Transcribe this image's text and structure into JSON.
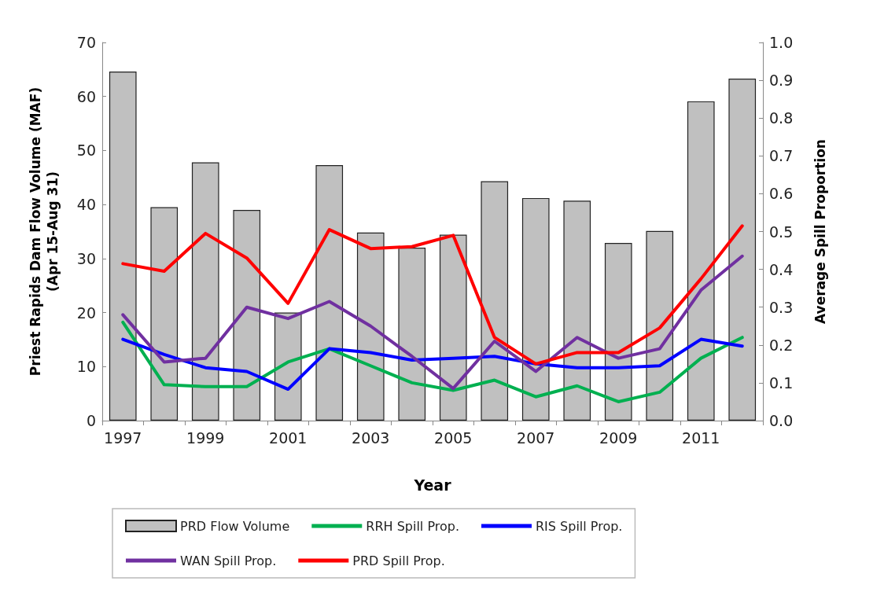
{
  "chart_data": {
    "type": "bar",
    "xlabel": "Year",
    "ylabel": "Priest Rapids Dam Flow Volume (MAF)\n(Apr 15-Aug 31)",
    "y2label": "Average Spill Proportion",
    "categories": [
      "1997",
      null,
      "1999",
      null,
      "2001",
      null,
      "2003",
      null,
      "2005",
      null,
      "2007",
      null,
      "2009",
      null,
      "2011",
      null
    ],
    "series": [
      {
        "name": "PRD Flow Volume",
        "color": "#c0c0c0",
        "values": [
          64.6,
          39.5,
          47.8,
          39,
          20,
          47.3,
          34.8,
          32,
          34.4,
          44.3,
          41.2,
          40.7,
          32.9,
          35.1,
          59.1,
          63.3
        ]
      },
      {
        "name": "RRH Spill Prop.",
        "type": "line",
        "axis": "y2",
        "color": "#00b050",
        "values": [
          0.26,
          0.095,
          0.09,
          0.09,
          0.155,
          0.19,
          0.145,
          0.1,
          0.08,
          0.107,
          0.063,
          0.092,
          0.05,
          0.075,
          0.165,
          0.22
        ]
      },
      {
        "name": "RIS Spill Prop.",
        "type": "line",
        "axis": "y2",
        "color": "#0000ff",
        "values": [
          0.215,
          0.175,
          0.14,
          0.13,
          0.083,
          0.19,
          0.18,
          0.16,
          0.165,
          0.17,
          0.15,
          0.14,
          0.14,
          0.145,
          0.215,
          0.197
        ]
      },
      {
        "name": "WAN Spill Prop.",
        "type": "line",
        "axis": "y2",
        "color": "#7030a0",
        "values": [
          0.28,
          0.155,
          0.165,
          0.3,
          0.27,
          0.315,
          0.25,
          0.17,
          0.085,
          0.21,
          0.13,
          0.22,
          0.165,
          0.19,
          0.345,
          0.435
        ]
      },
      {
        "name": "PRD Spill Prop.",
        "type": "line",
        "axis": "y2",
        "color": "#ff0000",
        "values": [
          0.415,
          0.395,
          0.495,
          0.43,
          0.31,
          0.505,
          0.455,
          0.46,
          0.49,
          0.22,
          0.15,
          0.18,
          0.18,
          0.245,
          0.375,
          0.515
        ]
      }
    ],
    "ylim": [
      0,
      70
    ],
    "yticks": [
      0,
      10,
      20,
      30,
      40,
      50,
      60,
      70
    ],
    "y2lim": [
      0,
      1
    ],
    "y2ticks": [
      {
        "value": 0,
        "label": "0.0"
      },
      0.1,
      0.2,
      0.3,
      0.4,
      0.5,
      0.6,
      0.7,
      0.8,
      0.9,
      {
        "value": 1,
        "label": "1.0"
      }
    ],
    "grid": false,
    "legend": "bottom",
    "marker": "none",
    "line_style": "solid"
  }
}
